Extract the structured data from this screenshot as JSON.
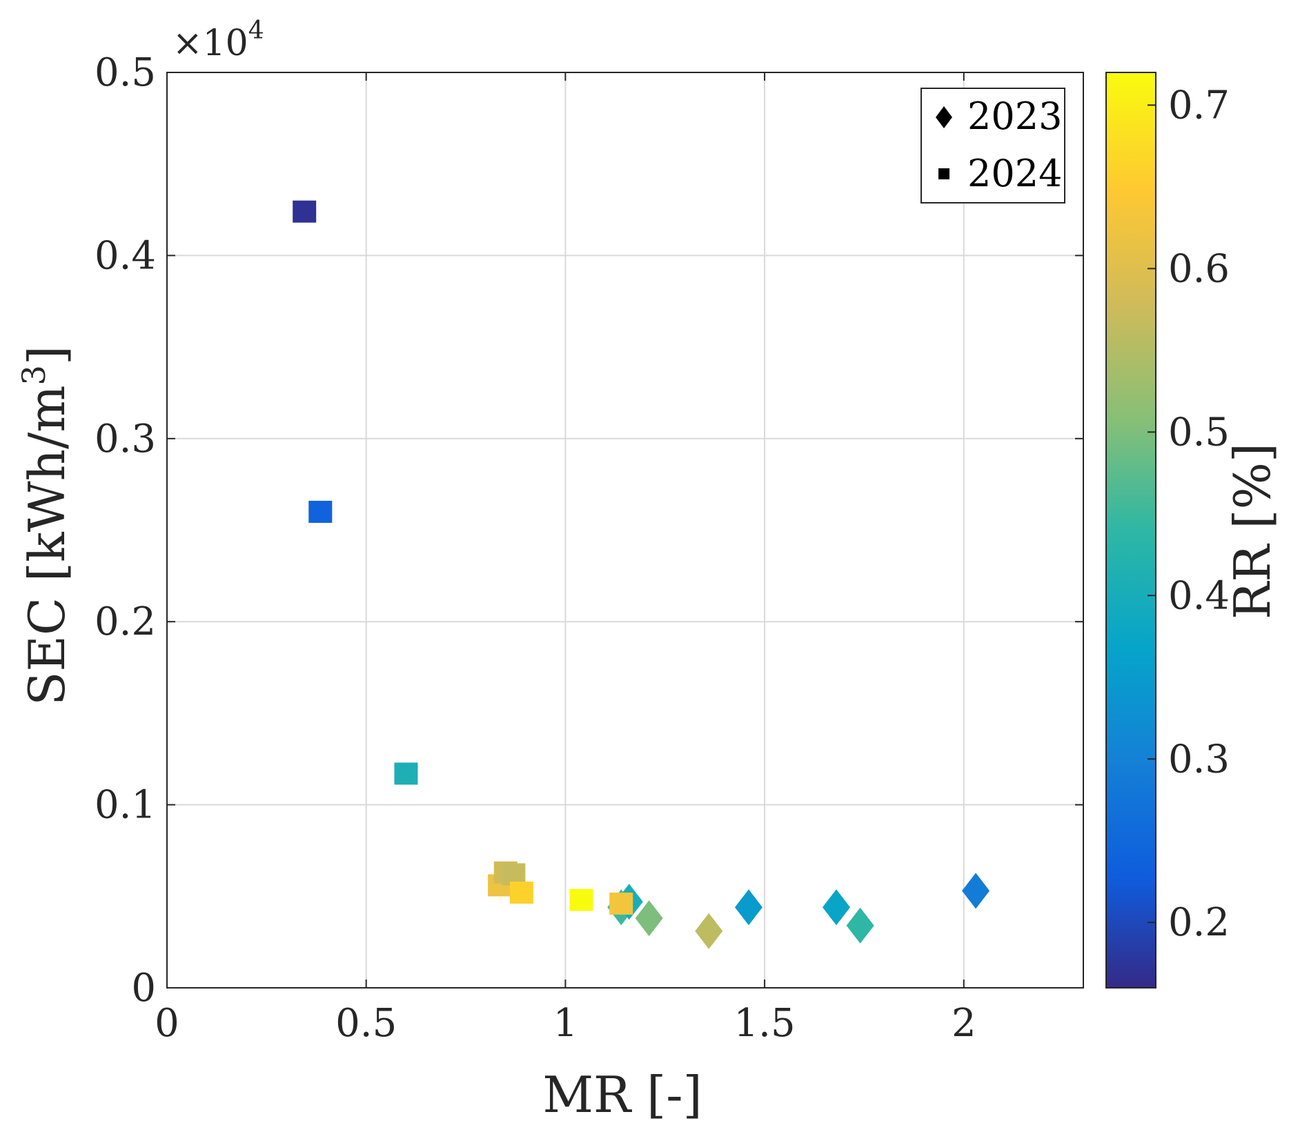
{
  "chart_data": {
    "type": "scatter",
    "xlabel": "MR [-]",
    "ylabel": "SEC [kWh/m",
    "ylabel_sup": "3",
    "ylabel_end": "]",
    "exponent_prefix": "×10",
    "exponent_power": "4",
    "xlim": [
      0,
      2.3
    ],
    "ylim": [
      0,
      0.5
    ],
    "xticks": [
      "0",
      "0.5",
      "1",
      "1.5",
      "2"
    ],
    "xtick_values": [
      0,
      0.5,
      1,
      1.5,
      2
    ],
    "yticks": [
      "0",
      "0.1",
      "0.2",
      "0.3",
      "0.4",
      "0.5"
    ],
    "ytick_values": [
      0,
      0.1,
      0.2,
      0.3,
      0.4,
      0.5
    ],
    "grid": true,
    "legend": {
      "position": "top-right",
      "entries": [
        {
          "label": "2023",
          "marker": "diamond"
        },
        {
          "label": "2024",
          "marker": "square"
        }
      ]
    },
    "colorbar": {
      "label": "RR [%]",
      "range": [
        0.16,
        0.72
      ],
      "ticks": [
        "0.2",
        "0.3",
        "0.4",
        "0.5",
        "0.6",
        "0.7"
      ],
      "tick_values": [
        0.2,
        0.3,
        0.4,
        0.5,
        0.6,
        0.7
      ]
    },
    "series": [
      {
        "name": "2023",
        "marker": "diamond",
        "points": [
          {
            "x": 1.14,
            "y": 0.044,
            "rr": 0.45
          },
          {
            "x": 1.16,
            "y": 0.047,
            "rr": 0.4
          },
          {
            "x": 1.21,
            "y": 0.038,
            "rr": 0.5
          },
          {
            "x": 1.36,
            "y": 0.031,
            "rr": 0.56
          },
          {
            "x": 1.46,
            "y": 0.044,
            "rr": 0.35
          },
          {
            "x": 1.68,
            "y": 0.044,
            "rr": 0.37
          },
          {
            "x": 1.74,
            "y": 0.034,
            "rr": 0.44
          },
          {
            "x": 2.03,
            "y": 0.053,
            "rr": 0.29
          }
        ]
      },
      {
        "name": "2024",
        "marker": "square",
        "points": [
          {
            "x": 0.345,
            "y": 0.424,
            "rr": 0.17
          },
          {
            "x": 0.385,
            "y": 0.26,
            "rr": 0.24
          },
          {
            "x": 0.6,
            "y": 0.117,
            "rr": 0.41
          },
          {
            "x": 0.835,
            "y": 0.056,
            "rr": 0.62
          },
          {
            "x": 0.85,
            "y": 0.063,
            "rr": 0.58
          },
          {
            "x": 0.87,
            "y": 0.062,
            "rr": 0.57
          },
          {
            "x": 0.89,
            "y": 0.052,
            "rr": 0.66
          },
          {
            "x": 1.04,
            "y": 0.048,
            "rr": 0.72
          },
          {
            "x": 1.14,
            "y": 0.046,
            "rr": 0.63
          }
        ]
      }
    ]
  }
}
